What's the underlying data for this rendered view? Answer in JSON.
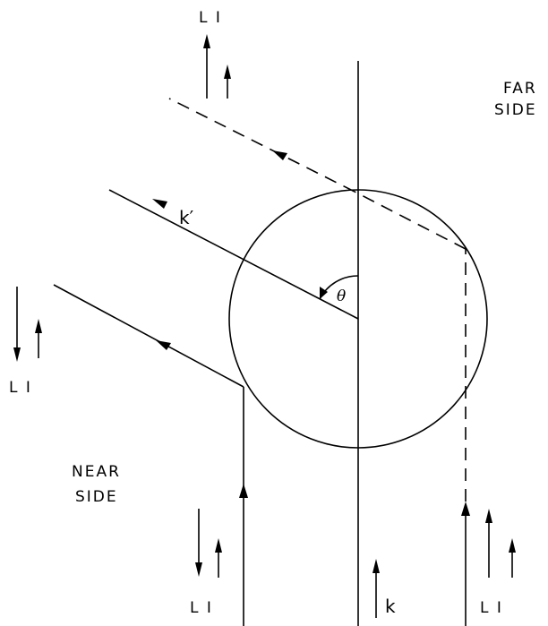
{
  "labels": {
    "far_side_line1": "FAR",
    "far_side_line2": "SIDE",
    "near_side_line1": "NEAR",
    "near_side_line2": "SIDE",
    "k": "k",
    "k_prime": "k′",
    "theta": "θ",
    "li_top": "L I",
    "li_left": "L I",
    "li_bottom_left": "L I",
    "li_bottom_right": "L I"
  }
}
